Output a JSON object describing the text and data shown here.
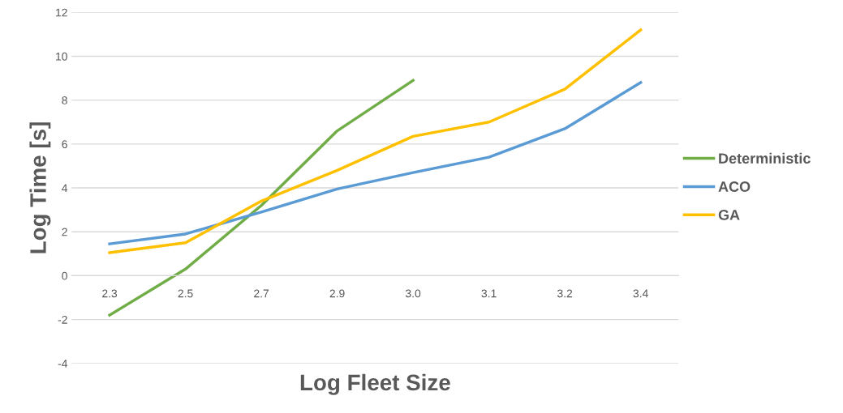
{
  "chart_data": {
    "type": "line",
    "xlabel": "Log Fleet Size",
    "ylabel": "Log Time [s]",
    "categories": [
      "2.3",
      "2.5",
      "2.7",
      "2.9",
      "3.0",
      "3.1",
      "3.2",
      "3.4"
    ],
    "series": [
      {
        "name": "Deterministic",
        "color": "#70ad47",
        "values": [
          -1.8,
          0.3,
          3.2,
          6.6,
          8.9,
          null,
          null,
          null
        ]
      },
      {
        "name": "ACO",
        "color": "#5b9bd5",
        "values": [
          1.45,
          1.9,
          2.9,
          3.95,
          4.7,
          5.4,
          6.7,
          8.8
        ]
      },
      {
        "name": "GA",
        "color": "#ffc000",
        "values": [
          1.05,
          1.5,
          3.4,
          4.8,
          6.35,
          7.0,
          8.5,
          11.2
        ]
      }
    ],
    "ylim": [
      -4,
      12
    ],
    "yticks": [
      -4,
      -2,
      0,
      2,
      4,
      6,
      8,
      10,
      12
    ],
    "grid": "y",
    "legend": "right",
    "marker": "none",
    "line_style": "solid"
  }
}
